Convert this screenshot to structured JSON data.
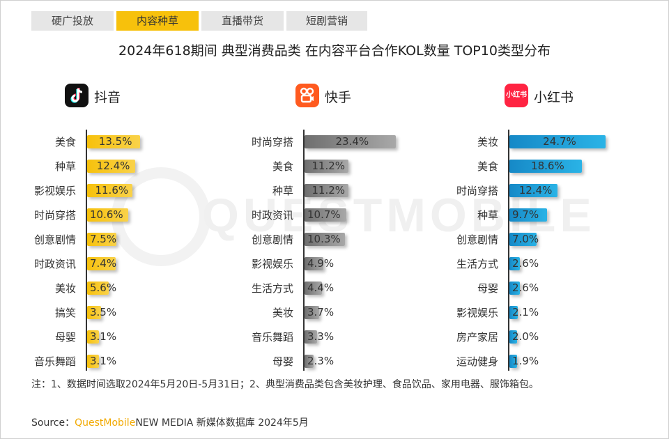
{
  "tabs": [
    {
      "label": "硬广投放",
      "active": false
    },
    {
      "label": "内容种草",
      "active": true
    },
    {
      "label": "直播带货",
      "active": false
    },
    {
      "label": "短剧营销",
      "active": false
    }
  ],
  "colors": {
    "douyin": "#f7c10c",
    "kuaishou": "#8a8a8a",
    "xiaohongshu": "#1a9bd7",
    "tab_active": "#f7c10c"
  },
  "watermark": "QUESTMOBILE",
  "chart_data": {
    "type": "bar",
    "title": "2024年618期间 典型消费品类 在内容平台合作KOL数量 TOP10类型分布",
    "platforms": [
      {
        "name": "抖音",
        "logo_icon": "douyin-logo-icon",
        "categories": [
          "美食",
          "种草",
          "影视娱乐",
          "时尚穿搭",
          "创意剧情",
          "时政资讯",
          "美妆",
          "搞笑",
          "母婴",
          "音乐舞蹈"
        ],
        "values": [
          13.5,
          12.4,
          11.6,
          10.6,
          7.5,
          7.4,
          5.6,
          3.5,
          3.1,
          3.1
        ],
        "labels": [
          "13.5%",
          "12.4%",
          "11.6%",
          "10.6%",
          "7.5%",
          "7.4%",
          "5.6%",
          "3.5%",
          "3.1%",
          "3.1%"
        ]
      },
      {
        "name": "快手",
        "logo_icon": "kuaishou-logo-icon",
        "categories": [
          "时尚穿搭",
          "美食",
          "种草",
          "时政资讯",
          "创意剧情",
          "影视娱乐",
          "生活方式",
          "美妆",
          "音乐舞蹈",
          "母婴"
        ],
        "values": [
          23.4,
          11.2,
          11.2,
          10.7,
          10.3,
          4.9,
          4.4,
          3.7,
          3.3,
          2.3
        ],
        "labels": [
          "23.4%",
          "11.2%",
          "11.2%",
          "10.7%",
          "10.3%",
          "4.9%",
          "4.4%",
          "3.7%",
          "3.3%",
          "2.3%"
        ]
      },
      {
        "name": "小红书",
        "logo_text": "小红书",
        "logo_icon": "xiaohongshu-logo-icon",
        "categories": [
          "美妆",
          "美食",
          "时尚穿搭",
          "种草",
          "创意剧情",
          "生活方式",
          "母婴",
          "影视娱乐",
          "房产家居",
          "运动健身"
        ],
        "values": [
          24.7,
          18.6,
          12.4,
          9.7,
          7.0,
          2.6,
          2.6,
          2.1,
          2.0,
          1.9
        ],
        "labels": [
          "24.7%",
          "18.6%",
          "12.4%",
          "9.7%",
          "7.0%",
          "2.6%",
          "2.6%",
          "2.1%",
          "2.0%",
          "1.9%"
        ]
      }
    ]
  },
  "note": "注：1、数据时间选取2024年5月20日-5月31日；2、典型消费品类包含美妆护理、食品饮品、家用电器、服饰箱包。",
  "source": {
    "prefix": "Source：",
    "brand": "QuestMobile",
    "suffix": "NEW MEDIA 新媒体数据库 2024年5月"
  }
}
